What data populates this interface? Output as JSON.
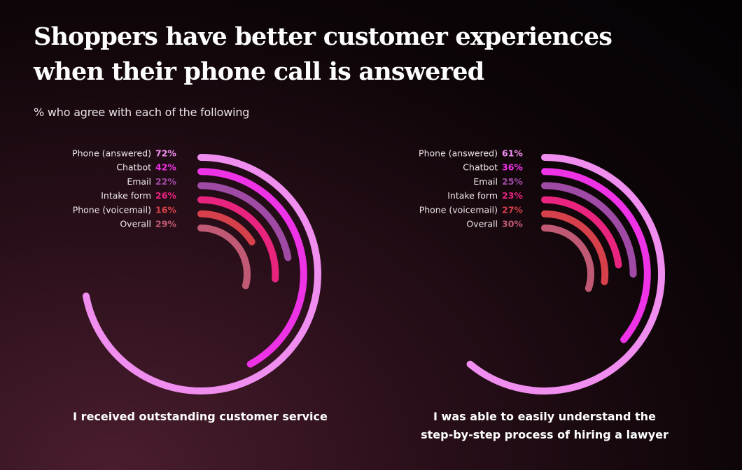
{
  "title_lines": [
    "Shoppers have better customer experiences",
    "when their phone call is answered"
  ],
  "subtitle": "% who agree with each of the following",
  "chart_data": [
    {
      "type": "radial-bar",
      "caption_lines": [
        "I received outstanding customer service"
      ],
      "categories": [
        "Phone (answered)",
        "Chatbot",
        "Email",
        "Intake form",
        "Phone (voicemail)",
        "Overall"
      ],
      "values": [
        72,
        42,
        22,
        26,
        16,
        29
      ],
      "value_labels": [
        "72%",
        "42%",
        "22%",
        "26%",
        "16%",
        "29%"
      ],
      "colors": [
        "#f08ef0",
        "#ee32e6",
        "#9f4aa4",
        "#e8247e",
        "#d6404a",
        "#c05a74"
      ],
      "unit": "%",
      "max": 100
    },
    {
      "type": "radial-bar",
      "caption_lines": [
        "I was able to easily understand the",
        "step-by-step process of hiring a lawyer"
      ],
      "categories": [
        "Phone (answered)",
        "Chatbot",
        "Email",
        "Intake form",
        "Phone (voicemail)",
        "Overall"
      ],
      "values": [
        61,
        36,
        25,
        23,
        27,
        30
      ],
      "value_labels": [
        "61%",
        "36%",
        "25%",
        "23%",
        "27%",
        "30%"
      ],
      "colors": [
        "#f08ef0",
        "#ee32e6",
        "#9f4aa4",
        "#e8247e",
        "#d6404a",
        "#c05a74"
      ],
      "unit": "%",
      "max": 100
    }
  ]
}
